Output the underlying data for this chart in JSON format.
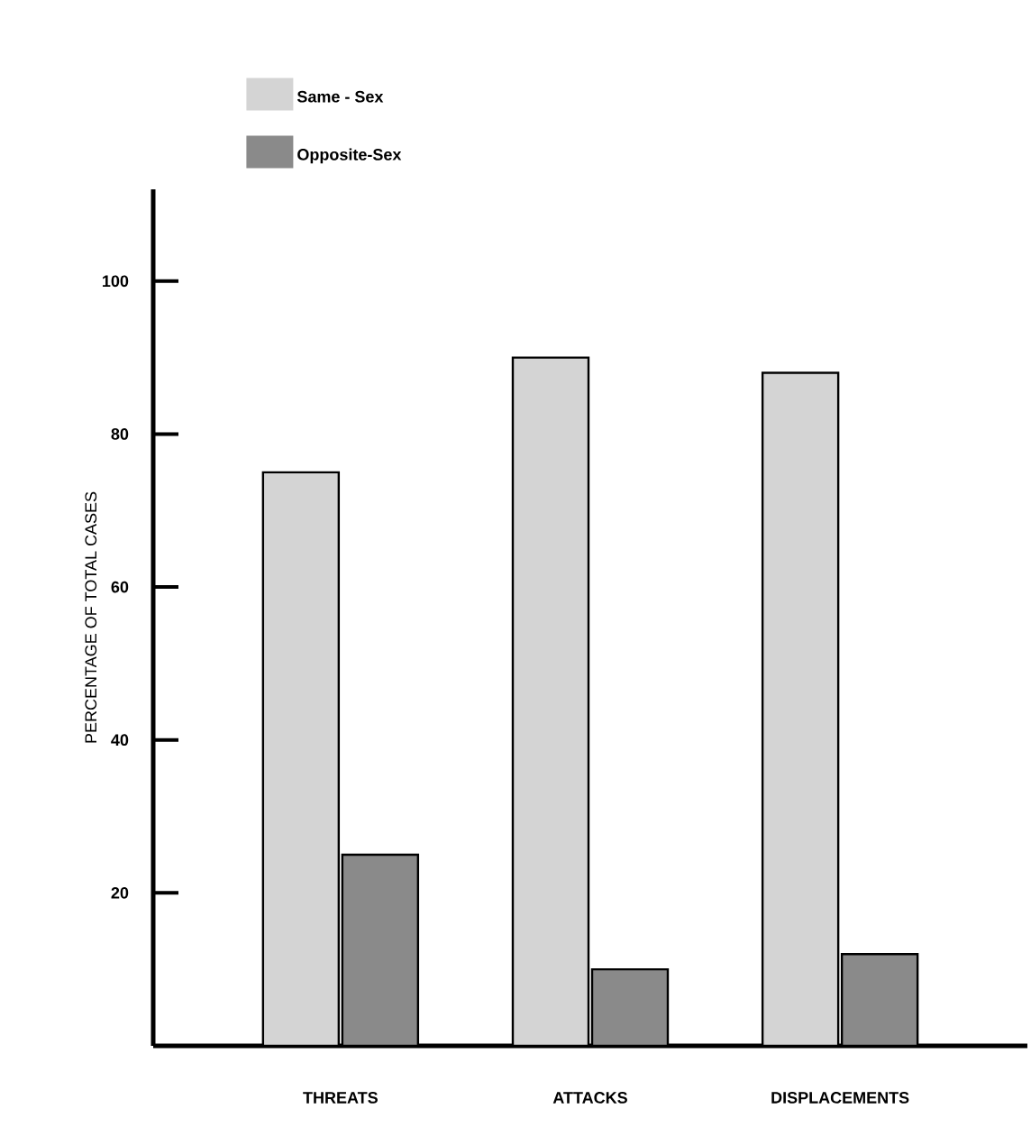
{
  "chart_data": {
    "type": "bar",
    "ylabel": "PERCENTAGE OF TOTAL CASES",
    "categories": [
      "THREATS",
      "ATTACKS",
      "DISPLACEMENTS"
    ],
    "series": [
      {
        "name": "Same - Sex",
        "color": "#d4d4d4",
        "values": [
          75,
          90,
          88
        ]
      },
      {
        "name": "Opposite-Sex",
        "color": "#8a8a8a",
        "values": [
          25,
          10,
          12
        ]
      }
    ],
    "ylim": [
      0,
      112
    ],
    "yticks": [
      20,
      40,
      60,
      80,
      100
    ],
    "grid": false,
    "legend": "top left"
  }
}
